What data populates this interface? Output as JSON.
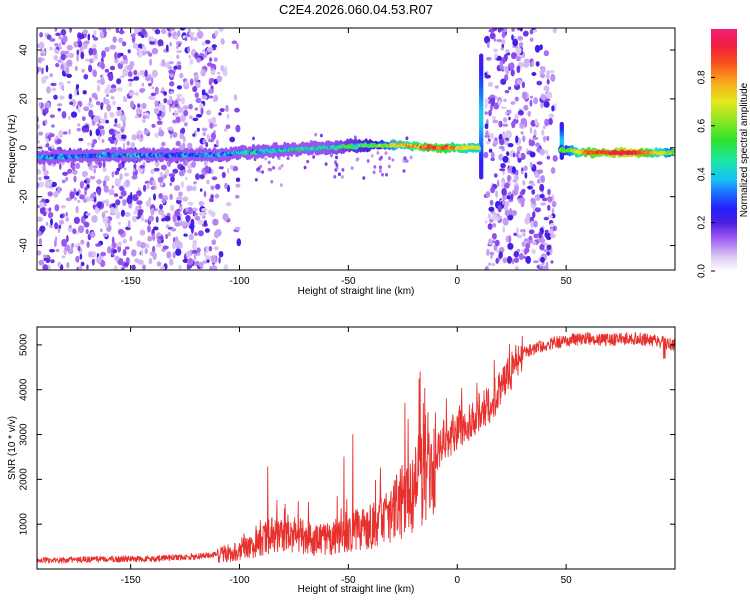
{
  "title": "C2E4.2026.060.04.53.R07",
  "chart_data": [
    {
      "type": "heatmap",
      "title": "C2E4.2026.060.04.53.R07",
      "xlabel": "Height of straight line (km)",
      "ylabel": "Frequency (Hz)",
      "xlim": [
        -193,
        100
      ],
      "ylim": [
        -50,
        49
      ],
      "xticks": [
        -150,
        -100,
        -50,
        0,
        50
      ],
      "xtick_labels": [
        "-150",
        "-100",
        "-50",
        "0",
        "50"
      ],
      "yticks": [
        -40,
        -20,
        0,
        20,
        40
      ],
      "ytick_labels": [
        "-40",
        "-20",
        "0",
        "20",
        "40"
      ],
      "colorbar": {
        "label": "Normalized spectral amplitude",
        "range": [
          0,
          1
        ],
        "ticks": [
          0,
          0.2,
          0.4,
          0.6,
          0.8
        ],
        "tick_labels": [
          "0.0",
          "0.2",
          "0.4",
          "0.6",
          "0.8"
        ]
      },
      "ridge": [
        {
          "x": -190,
          "f": -4,
          "amp": 0.3
        },
        {
          "x": -160,
          "f": -3,
          "amp": 0.3
        },
        {
          "x": -130,
          "f": -3,
          "amp": 0.3
        },
        {
          "x": -110,
          "f": -3,
          "amp": 0.32
        },
        {
          "x": -100,
          "f": -2,
          "amp": 0.35
        },
        {
          "x": -80,
          "f": -1,
          "amp": 0.4
        },
        {
          "x": -60,
          "f": 0,
          "amp": 0.42
        },
        {
          "x": -40,
          "f": 1,
          "amp": 0.48
        },
        {
          "x": -25,
          "f": 1,
          "amp": 0.7
        },
        {
          "x": -10,
          "f": 0,
          "amp": 0.85
        },
        {
          "x": 5,
          "f": 0,
          "amp": 0.7
        },
        {
          "x": 50,
          "f": -1,
          "amp": 0.55
        },
        {
          "x": 60,
          "f": -2,
          "amp": 0.85
        },
        {
          "x": 80,
          "f": -2,
          "amp": 0.95
        },
        {
          "x": 98,
          "f": -2,
          "amp": 0.6
        }
      ],
      "noise_bands": [
        {
          "x0": -193,
          "x1": -110,
          "density": "high"
        },
        {
          "x0": -110,
          "x1": -100,
          "density": "low"
        },
        {
          "x0": 13,
          "x1": 45,
          "density": "high"
        }
      ],
      "spikes": [
        {
          "x": 11,
          "f0": -12,
          "f1": 38
        },
        {
          "x": 48,
          "f0": -4,
          "f1": 10
        }
      ]
    },
    {
      "type": "line",
      "title": "",
      "xlabel": "Height of straight line (km)",
      "ylabel": "SNR (10 * v/v)",
      "xlim": [
        -193,
        100
      ],
      "ylim": [
        0,
        5400
      ],
      "xticks": [
        -150,
        -100,
        -50,
        0,
        50
      ],
      "xtick_labels": [
        "-150",
        "-100",
        "-50",
        "0",
        "50"
      ],
      "yticks": [
        1000,
        2000,
        3000,
        4000,
        5000
      ],
      "ytick_labels": [
        "1000",
        "2000",
        "3000",
        "4000",
        "5000"
      ],
      "series": [
        {
          "name": "SNR",
          "color": "#e8312e",
          "x": [
            -193,
            -180,
            -160,
            -140,
            -120,
            -110,
            -100,
            -95,
            -90,
            -85,
            -80,
            -75,
            -70,
            -65,
            -60,
            -55,
            -50,
            -45,
            -40,
            -35,
            -30,
            -25,
            -20,
            -15,
            -10,
            -5,
            0,
            5,
            10,
            15,
            20,
            25,
            30,
            40,
            50,
            60,
            70,
            80,
            90,
            100
          ],
          "y": [
            200,
            200,
            220,
            230,
            280,
            320,
            400,
            500,
            650,
            750,
            800,
            780,
            700,
            650,
            650,
            750,
            850,
            900,
            1000,
            1100,
            1300,
            1500,
            1800,
            2200,
            2600,
            2900,
            3100,
            3300,
            3500,
            3700,
            4000,
            4400,
            4800,
            5000,
            5100,
            5150,
            5100,
            5150,
            5100,
            5000
          ],
          "spikes": [
            {
              "x": -87,
              "y": 2280
            },
            {
              "x": -52,
              "y": 2500
            },
            {
              "x": -48,
              "y": 3000
            },
            {
              "x": -24,
              "y": 3700
            },
            {
              "x": -17,
              "y": 4400
            },
            {
              "x": -5,
              "y": 3800
            },
            {
              "x": 9,
              "y": 4150
            },
            {
              "x": 17,
              "y": 4650
            }
          ]
        }
      ]
    }
  ]
}
